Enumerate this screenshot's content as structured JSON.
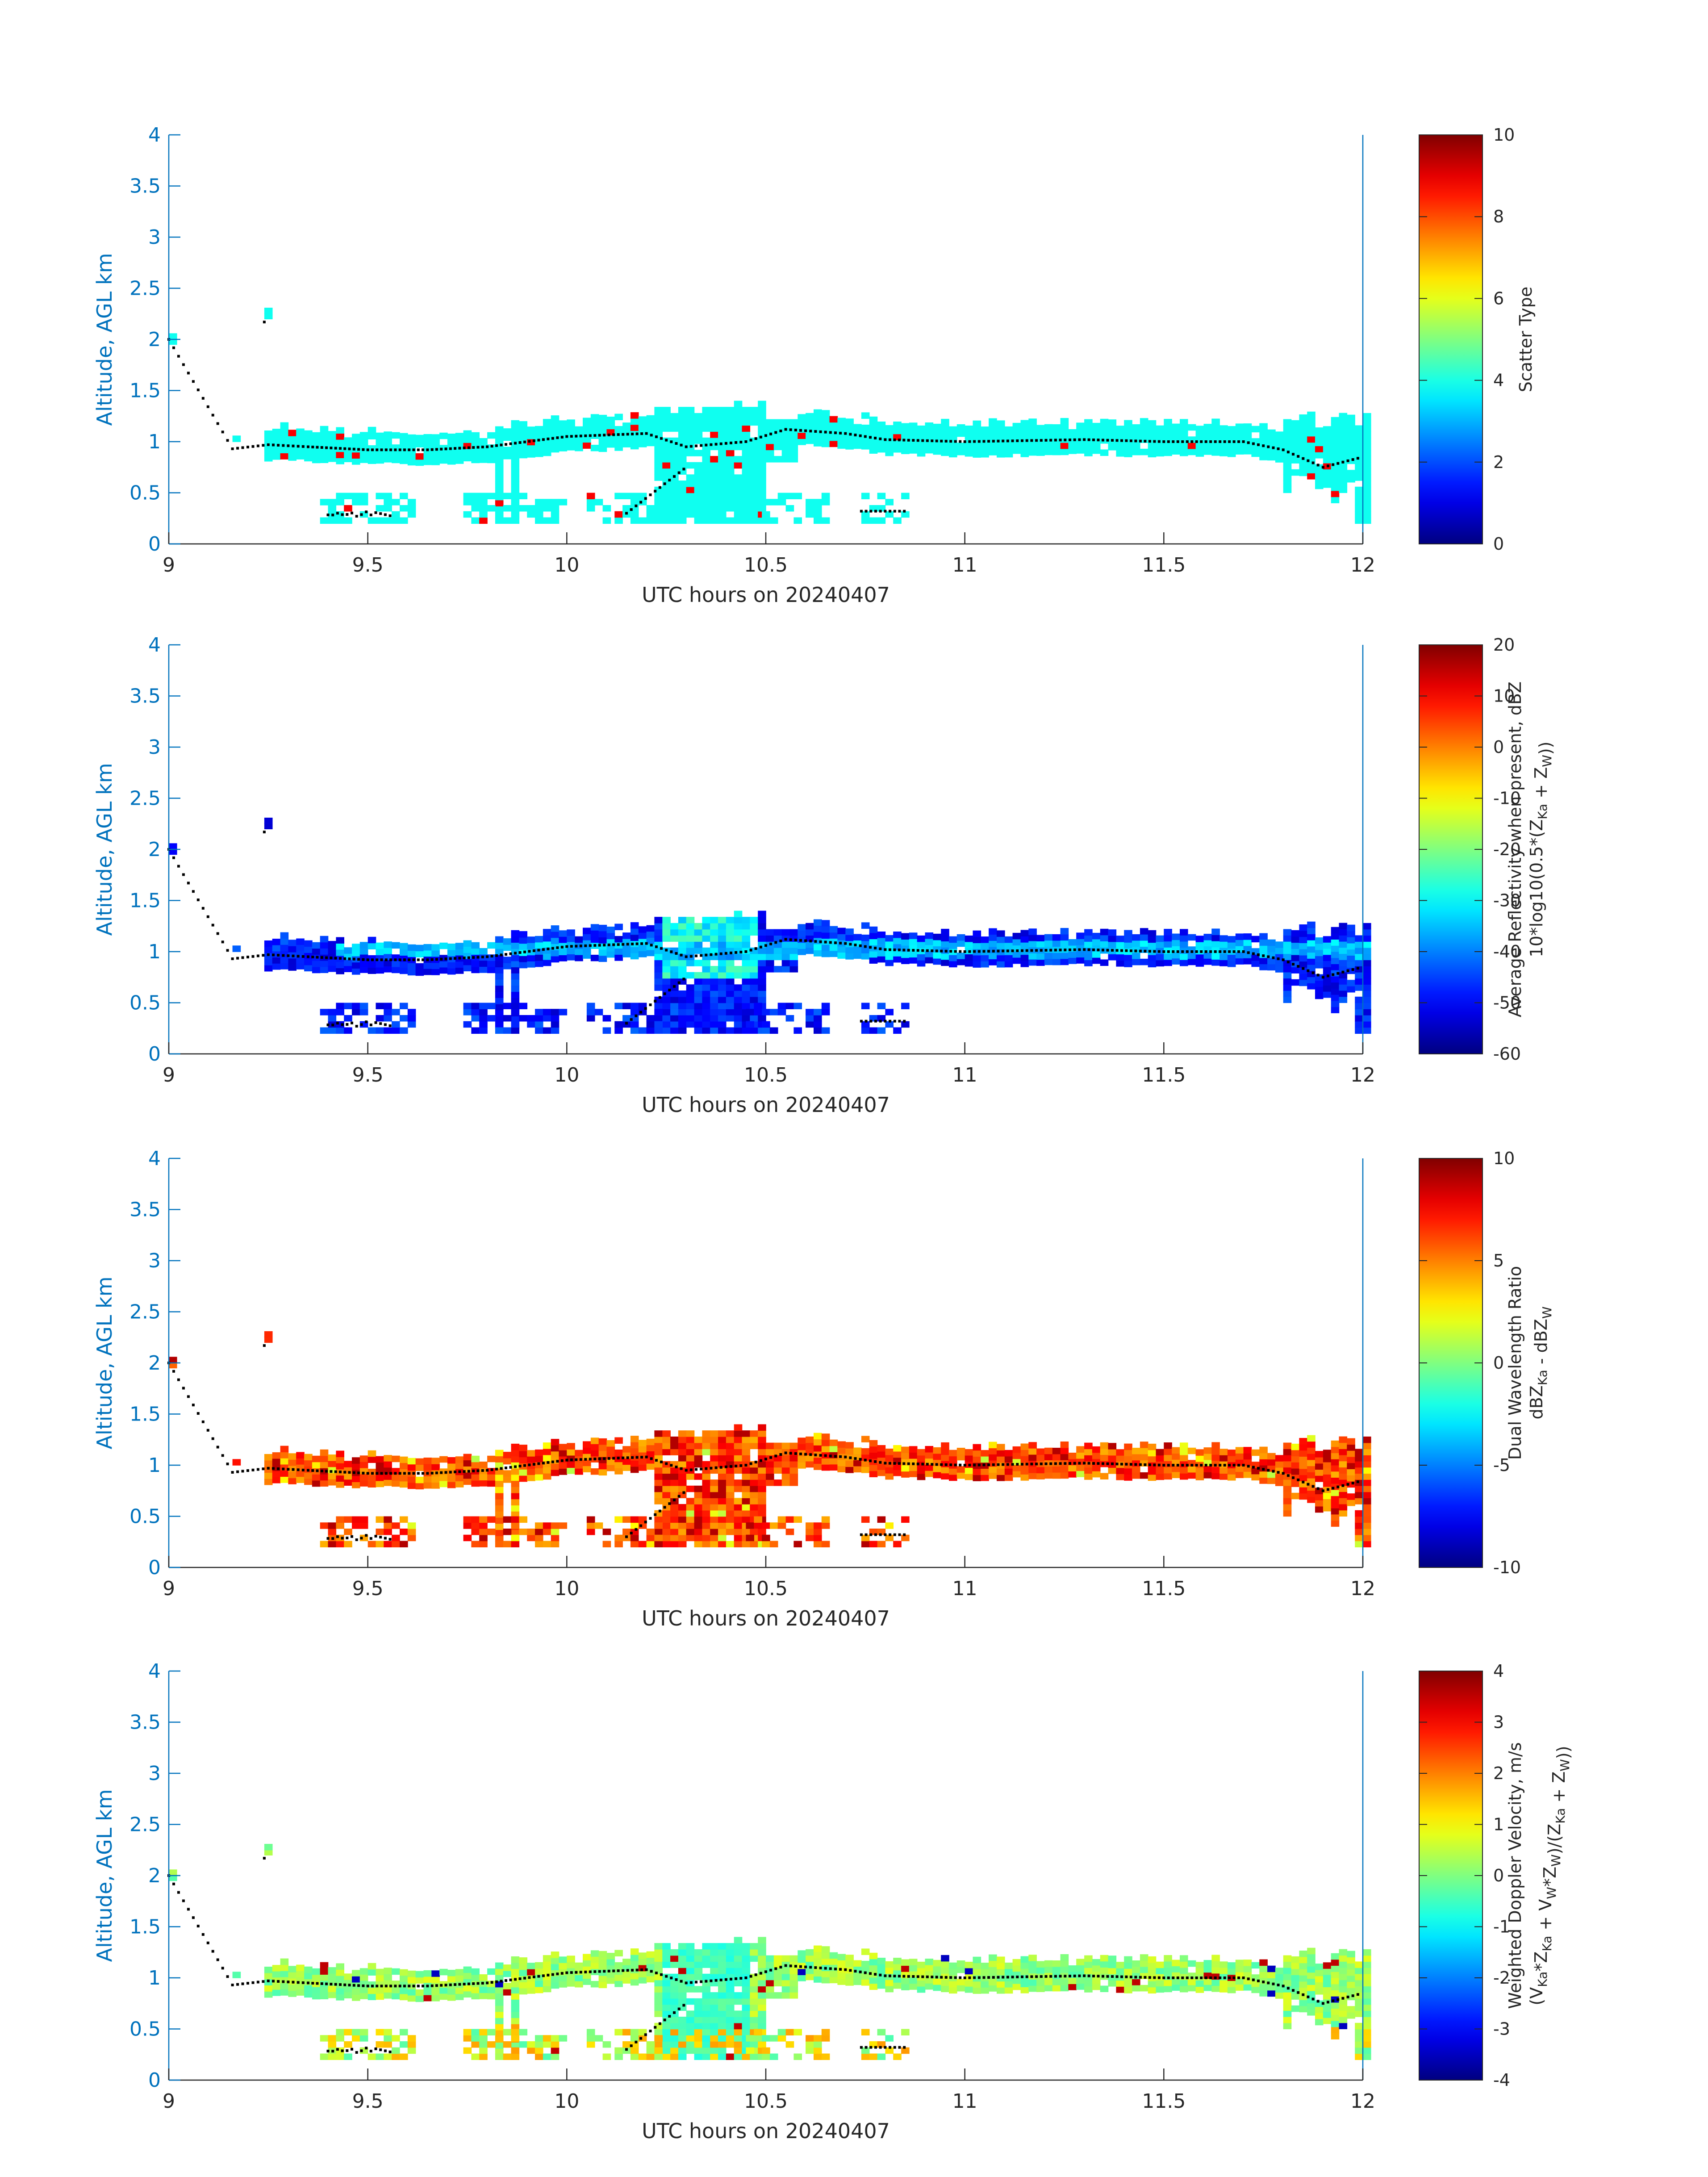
{
  "chart_data": [
    {
      "type": "heatmap",
      "ylabel": "Altitude, AGL km",
      "xlabel": "UTC hours on 20240407",
      "xlim": [
        9,
        12
      ],
      "ylim": [
        0,
        4
      ],
      "x_ticks": [
        "9",
        "9.5",
        "10",
        "10.5",
        "11",
        "11.5",
        "12"
      ],
      "y_ticks": [
        "0",
        "0.5",
        "1",
        "1.5",
        "2",
        "2.5",
        "3",
        "3.5",
        "4"
      ],
      "colorbar": {
        "label_lines": [
          "Scatter Type"
        ],
        "clim": [
          0,
          10
        ],
        "ticks": [
          "0",
          "2",
          "4",
          "6",
          "8",
          "10"
        ]
      },
      "dominant_value": 3.9,
      "base_line_km": [
        [
          9.0,
          2.0
        ],
        [
          9.16,
          0.93
        ],
        [
          9.25,
          0.97
        ],
        [
          9.35,
          0.95
        ],
        [
          9.5,
          0.92
        ],
        [
          9.65,
          0.92
        ],
        [
          9.8,
          0.95
        ],
        [
          10.0,
          1.05
        ],
        [
          10.2,
          1.08
        ],
        [
          10.3,
          0.95
        ],
        [
          10.45,
          1.0
        ],
        [
          10.55,
          1.12
        ],
        [
          10.7,
          1.08
        ],
        [
          10.8,
          1.02
        ],
        [
          11.0,
          1.0
        ],
        [
          11.3,
          1.02
        ],
        [
          11.5,
          1.0
        ],
        [
          11.7,
          1.0
        ],
        [
          11.8,
          0.92
        ],
        [
          11.9,
          0.75
        ],
        [
          12.0,
          0.85
        ]
      ]
    },
    {
      "type": "heatmap",
      "ylabel": "Altitude, AGL km",
      "xlabel": "UTC hours on 20240407",
      "xlim": [
        9,
        12
      ],
      "ylim": [
        -60,
        20
      ],
      "x_ticks": [
        "9",
        "9.5",
        "10",
        "10.5",
        "11",
        "11.5",
        "12"
      ],
      "y_ticks": [
        "0",
        "0.5",
        "1",
        "1.5",
        "2",
        "2.5",
        "3",
        "3.5",
        "4"
      ],
      "colorbar": {
        "label_lines": [
          "Average Reflectivity when present, dBZ",
          "10*log10(0.5*(Z_Ka + Z_W))"
        ],
        "clim": [
          -60,
          20
        ],
        "ticks": [
          "-60",
          "-50",
          "-40",
          "-30",
          "-20",
          "-10",
          "0",
          "10",
          "20"
        ]
      },
      "dominant_value": -48
    },
    {
      "type": "heatmap",
      "ylabel": "Altitude, AGL km",
      "xlabel": "UTC hours on 20240407",
      "xlim": [
        9,
        12
      ],
      "ylim": [
        -10,
        10
      ],
      "x_ticks": [
        "9",
        "9.5",
        "10",
        "10.5",
        "11",
        "11.5",
        "12"
      ],
      "y_ticks": [
        "0",
        "0.5",
        "1",
        "1.5",
        "2",
        "2.5",
        "3",
        "3.5",
        "4"
      ],
      "colorbar": {
        "label_lines": [
          "Dual Wavelength Ratio",
          "dBZ_Ka - dBZ_W"
        ],
        "clim": [
          -10,
          10
        ],
        "ticks": [
          "-10",
          "-5",
          "0",
          "5",
          "10"
        ]
      },
      "dominant_value": 6
    },
    {
      "type": "heatmap",
      "ylabel": "Altitude, AGL km",
      "xlabel": "UTC hours on 20240407",
      "xlim": [
        9,
        12
      ],
      "ylim": [
        -4,
        4
      ],
      "x_ticks": [
        "9",
        "9.5",
        "10",
        "10.5",
        "11",
        "11.5",
        "12"
      ],
      "y_ticks": [
        "0",
        "0.5",
        "1",
        "1.5",
        "2",
        "2.5",
        "3",
        "3.5",
        "4"
      ],
      "colorbar": {
        "label_lines": [
          "Weighted Doppler Velocity, m/s",
          "(V_Ka*Z_Ka + V_W*Z_W)/(Z_Ka + Z_W))"
        ],
        "clim": [
          -4,
          4
        ],
        "ticks": [
          "-4",
          "-3",
          "-2",
          "-1",
          "0",
          "1",
          "2",
          "3",
          "4"
        ]
      },
      "dominant_value": 0.2
    }
  ]
}
